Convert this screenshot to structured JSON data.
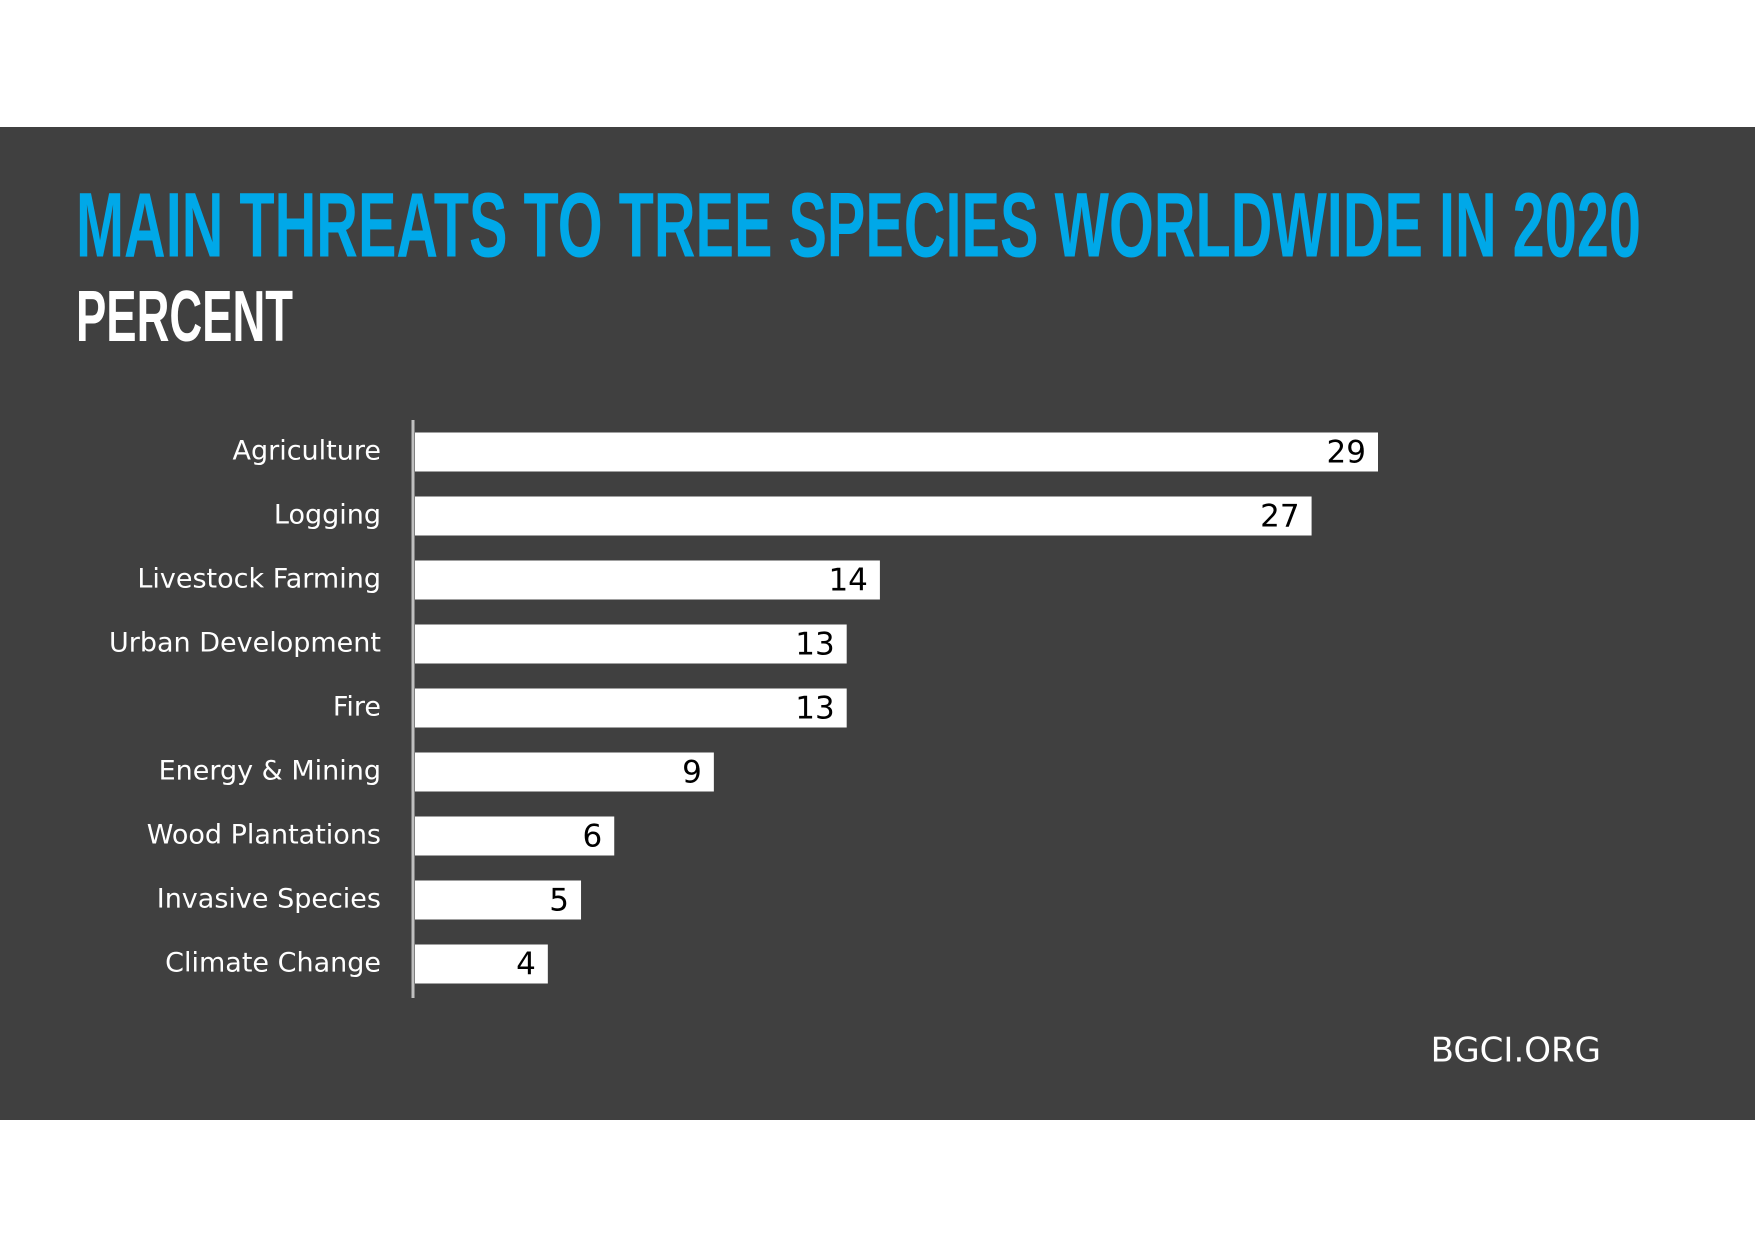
{
  "chart_data": {
    "type": "bar",
    "orientation": "horizontal",
    "title": "MAIN THREATS TO TREE SPECIES WORLDWIDE IN 2020",
    "subtitle": "PERCENT",
    "source": "BGCI.ORG",
    "categories": [
      "Agriculture",
      "Logging",
      "Livestock Farming",
      "Urban Development",
      "Fire",
      "Energy & Mining",
      "Wood Plantations",
      "Invasive Species",
      "Climate Change"
    ],
    "values": [
      29,
      27,
      14,
      13,
      13,
      9,
      6,
      5,
      4
    ],
    "color": "#ffffff"
  }
}
